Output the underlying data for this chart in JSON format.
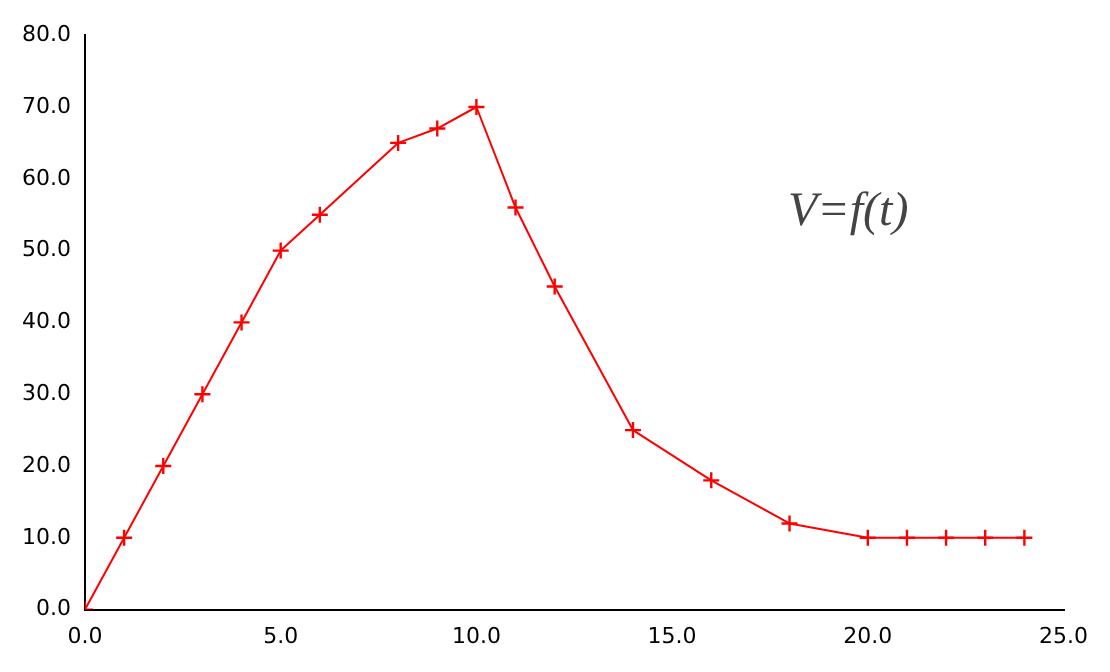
{
  "chart_data": {
    "type": "line",
    "x": [
      0,
      1,
      2,
      3,
      4,
      5,
      6,
      8,
      9,
      10,
      11,
      12,
      14,
      16,
      18,
      20,
      21,
      22,
      23,
      24
    ],
    "series": [
      {
        "color": "#ff0000",
        "values": [
          0,
          10,
          20,
          30,
          40,
          50,
          55,
          65,
          67,
          70,
          56,
          45,
          25,
          18,
          12,
          10,
          10,
          10,
          10,
          10
        ]
      }
    ],
    "xlim": [
      0,
      25
    ],
    "xticks": [
      {
        "value": 0,
        "label": "0.0"
      },
      {
        "value": 5,
        "label": "5.0"
      },
      {
        "value": 10,
        "label": "10.0"
      },
      {
        "value": 15,
        "label": "15.0"
      },
      {
        "value": 20,
        "label": "20.0"
      },
      {
        "value": 25,
        "label": "25.0"
      }
    ],
    "ylim": [
      0,
      80
    ],
    "yticks": [
      {
        "value": 0,
        "label": "0.0"
      },
      {
        "value": 10,
        "label": "10.0"
      },
      {
        "value": 20,
        "label": "20.0"
      },
      {
        "value": 30,
        "label": "30.0"
      },
      {
        "value": 40,
        "label": "40.0"
      },
      {
        "value": 50,
        "label": "50.0"
      },
      {
        "value": 60,
        "label": "60.0"
      },
      {
        "value": 70,
        "label": "70.0"
      },
      {
        "value": 80,
        "label": "80.0"
      }
    ],
    "annotations": [
      "V=f(t)"
    ],
    "grid": false,
    "legend": false,
    "marker": "cross",
    "line_style": "solid"
  }
}
